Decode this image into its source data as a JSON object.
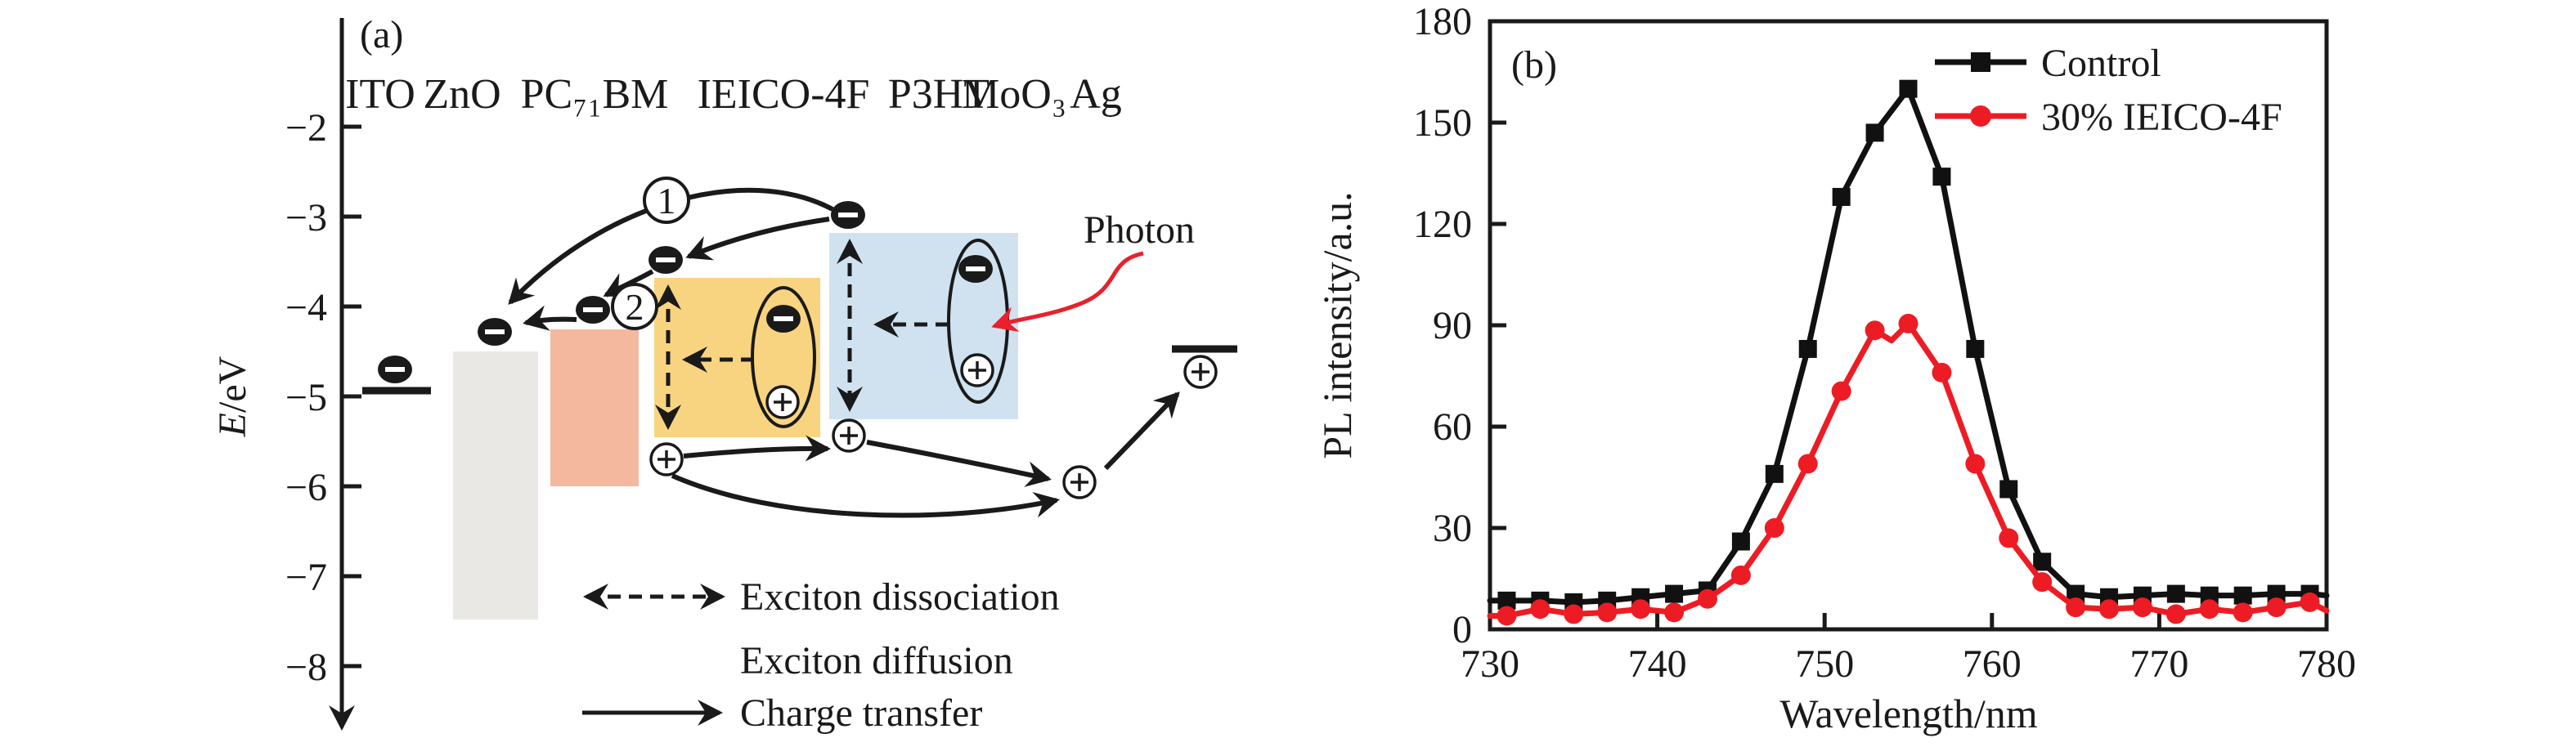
{
  "figure": {
    "background": "#ffffff",
    "text_color": "#1a1a1a"
  },
  "panel_a": {
    "label": "(a)",
    "y_axis": {
      "label_e": "E",
      "label_unit": "/eV",
      "ticks": [
        "−2",
        "−3",
        "−4",
        "−5",
        "−6",
        "−7",
        "−8"
      ]
    },
    "materials": [
      "ITO",
      "ZnO",
      "PC₇₁BM",
      "IEICO-4F",
      "P3HT",
      "MoO₃",
      "Ag"
    ],
    "steps": {
      "one": "1",
      "two": "2"
    },
    "photon_label": "Photon",
    "legend": {
      "dissociation": "Exciton dissociation",
      "diffusion": "Exciton diffusion",
      "transfer": "Charge transfer"
    },
    "colors": {
      "zno_box": "#e9e8e5",
      "pc71bm_box": "#f4b89e",
      "ieico_box": "#f8d481",
      "p3ht_box": "#d0e2f0",
      "photon_red": "#e8212b",
      "ink": "#1a1a1a"
    }
  },
  "panel_b": {
    "label": "(b)"
  },
  "chart_data": {
    "type": "line",
    "title": "",
    "xlabel": "Wavelength/nm",
    "ylabel": "PL intensity/a.u.",
    "xlim": [
      730,
      780
    ],
    "ylim": [
      0,
      180
    ],
    "x_ticks": [
      730,
      740,
      750,
      760,
      770,
      780
    ],
    "y_ticks": [
      0,
      30,
      60,
      90,
      120,
      150,
      180
    ],
    "grid": false,
    "legend_position": "top-right",
    "series": [
      {
        "name": "Control",
        "color": "#111111",
        "marker": "square",
        "x": [
          730,
          731,
          733,
          735,
          737,
          739,
          741,
          743,
          745,
          747,
          749,
          751,
          753,
          755,
          757,
          759,
          761,
          763,
          765,
          767,
          769,
          771,
          773,
          775,
          777,
          779,
          780
        ],
        "y": [
          8.5,
          8.5,
          8.5,
          8,
          8.5,
          9.5,
          10.5,
          11.5,
          26,
          46,
          83,
          128,
          147,
          160,
          134,
          83,
          41.5,
          20,
          10.5,
          9.5,
          10,
          10.5,
          10,
          10,
          10.5,
          10.5,
          10
        ],
        "marker_skip": [
          730,
          780
        ]
      },
      {
        "name": "30% IEICO-4F",
        "color": "#ed1c24",
        "marker": "circle",
        "x": [
          730,
          731,
          733,
          735,
          737,
          739,
          741,
          743,
          745,
          747,
          749,
          751,
          753,
          754,
          755,
          757,
          759,
          761,
          763,
          765,
          767,
          769,
          771,
          773,
          775,
          777,
          779,
          780
        ],
        "y": [
          4,
          4,
          6,
          4.5,
          5,
          6,
          5,
          9,
          16,
          30,
          49,
          70.5,
          88.5,
          85.5,
          90.5,
          76,
          49,
          27,
          14,
          6.5,
          6,
          6.5,
          4.5,
          6,
          5,
          6.5,
          8,
          5.5
        ],
        "marker_skip": [
          730,
          754,
          780
        ]
      }
    ]
  }
}
